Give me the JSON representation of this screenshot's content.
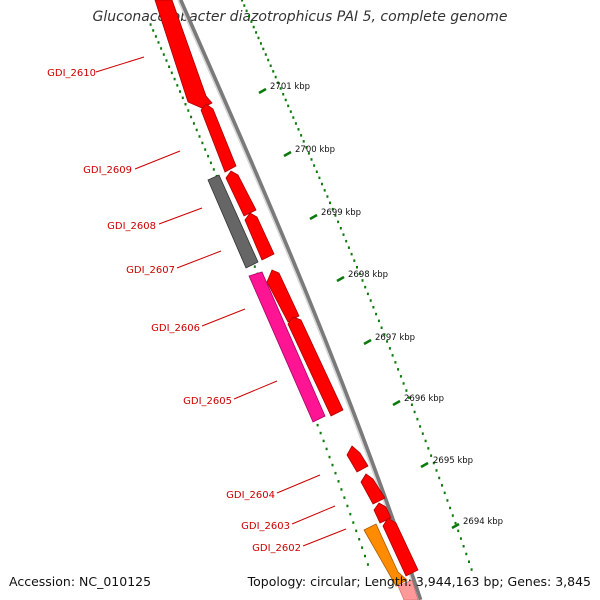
{
  "title": "Gluconacetobacter diazotrophicus PAI 5, complete genome",
  "footer": {
    "accession": "Accession: NC_010125",
    "topology": "Topology: circular; Length: 3,944,163 bp; Genes: 3,845"
  },
  "colors": {
    "backbone": "#888888",
    "tick": "#0a7a0a",
    "gene_label": "#cc0000",
    "kbp_label": "#111111"
  },
  "scale_labels": [
    "2701 kbp",
    "2700 kbp",
    "2699 kbp",
    "2698 kbp",
    "2697 kbp",
    "2696 kbp",
    "2695 kbp",
    "2694 kbp"
  ],
  "genes": [
    {
      "label": "GDI_2610",
      "color": "#ff0000",
      "strand": "reverse"
    },
    {
      "label": "GDI_2609",
      "color": "#ff0000",
      "strand": "reverse"
    },
    {
      "label": "GDI_2608",
      "color": "#666666",
      "strand": "reverse"
    },
    {
      "label": "GDI_2607",
      "color": "#ff0000",
      "strand": "reverse"
    },
    {
      "label": "GDI_2606",
      "color": "#ff1493",
      "strand": "reverse"
    },
    {
      "label": "GDI_2605",
      "color": "#ff0000",
      "strand": "reverse"
    },
    {
      "label": "GDI_2604",
      "color": "#ff0000",
      "strand": "reverse"
    },
    {
      "label": "GDI_2603",
      "color": "#ff0000",
      "strand": "reverse"
    },
    {
      "label": "GDI_2602",
      "color": "#ff8c00",
      "strand": "forward"
    }
  ]
}
